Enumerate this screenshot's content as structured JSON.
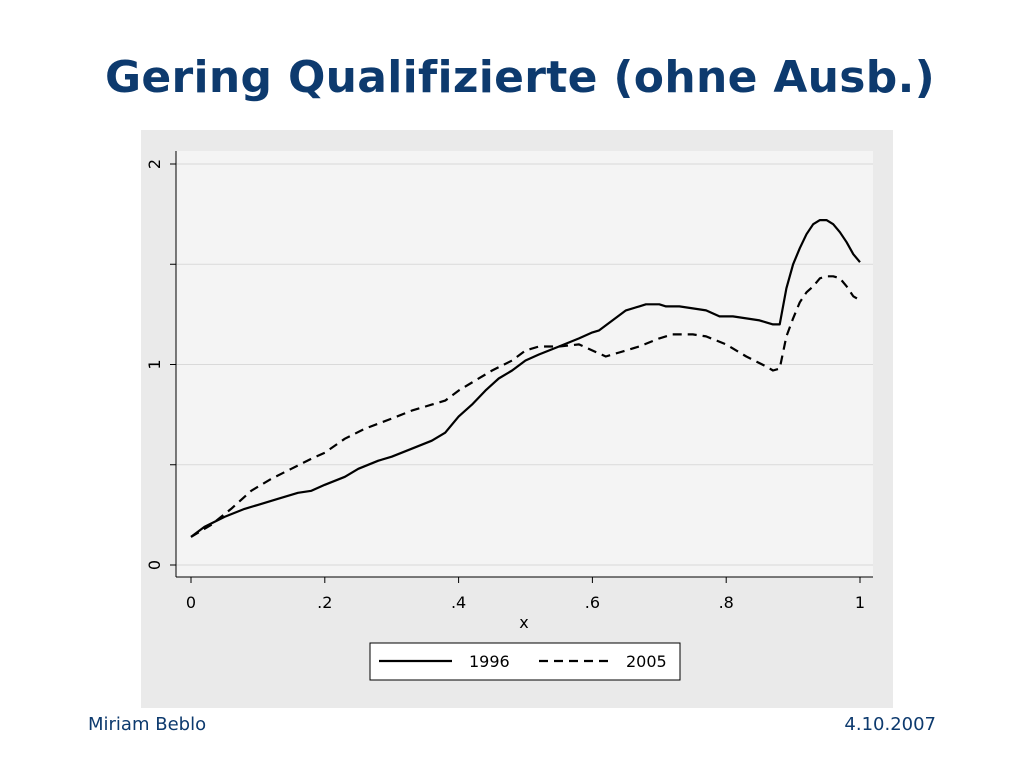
{
  "slide": {
    "title": "Gering Qualifizierte (ohne Ausb.)",
    "footer_left": "Miriam Beblo",
    "footer_right": "4.10.2007"
  },
  "colors": {
    "title": "#0d3a6e",
    "chart_outer_bg": "#eaeaea",
    "plot_bg": "#f4f4f4",
    "grid": "#d9d9d9",
    "line": "#000000"
  },
  "chart_data": {
    "type": "line",
    "xlabel": "x",
    "ylabel": "",
    "xlim": [
      0,
      1
    ],
    "ylim": [
      0,
      2
    ],
    "xticks": [
      0,
      0.2,
      0.4,
      0.6,
      0.8,
      1
    ],
    "xtick_labels": [
      "0",
      ".2",
      ".4",
      ".6",
      ".8",
      "1"
    ],
    "yticks": [
      0,
      0.5,
      1,
      1.5,
      2
    ],
    "ytick_labels": [
      "0",
      "",
      "1",
      "",
      "2"
    ],
    "grid": true,
    "legend_position": "bottom",
    "series": [
      {
        "name": "1996",
        "style": "solid",
        "x": [
          0,
          0.02,
          0.05,
          0.08,
          0.1,
          0.13,
          0.16,
          0.18,
          0.2,
          0.23,
          0.25,
          0.28,
          0.3,
          0.33,
          0.36,
          0.38,
          0.4,
          0.42,
          0.44,
          0.46,
          0.48,
          0.5,
          0.52,
          0.55,
          0.58,
          0.6,
          0.61,
          0.63,
          0.65,
          0.67,
          0.68,
          0.7,
          0.71,
          0.73,
          0.75,
          0.77,
          0.79,
          0.81,
          0.83,
          0.85,
          0.86,
          0.87,
          0.88,
          0.89,
          0.9,
          0.91,
          0.92,
          0.93,
          0.94,
          0.95,
          0.96,
          0.97,
          0.98,
          0.99,
          1.0
        ],
        "y": [
          0.14,
          0.19,
          0.24,
          0.28,
          0.3,
          0.33,
          0.36,
          0.37,
          0.4,
          0.44,
          0.48,
          0.52,
          0.54,
          0.58,
          0.62,
          0.66,
          0.74,
          0.8,
          0.87,
          0.93,
          0.97,
          1.02,
          1.05,
          1.09,
          1.13,
          1.16,
          1.17,
          1.22,
          1.27,
          1.29,
          1.3,
          1.3,
          1.29,
          1.29,
          1.28,
          1.27,
          1.24,
          1.24,
          1.23,
          1.22,
          1.21,
          1.2,
          1.2,
          1.38,
          1.5,
          1.58,
          1.65,
          1.7,
          1.72,
          1.72,
          1.7,
          1.66,
          1.61,
          1.55,
          1.51
        ]
      },
      {
        "name": "2005",
        "style": "dashed",
        "x": [
          0,
          0.03,
          0.06,
          0.09,
          0.12,
          0.15,
          0.18,
          0.2,
          0.23,
          0.26,
          0.3,
          0.33,
          0.36,
          0.37,
          0.38,
          0.4,
          0.42,
          0.45,
          0.48,
          0.5,
          0.52,
          0.55,
          0.58,
          0.6,
          0.62,
          0.64,
          0.67,
          0.7,
          0.72,
          0.75,
          0.77,
          0.8,
          0.83,
          0.86,
          0.87,
          0.88,
          0.89,
          0.9,
          0.91,
          0.92,
          0.93,
          0.94,
          0.95,
          0.96,
          0.97,
          0.98,
          0.99,
          1.0
        ],
        "y": [
          0.14,
          0.2,
          0.28,
          0.37,
          0.43,
          0.48,
          0.53,
          0.56,
          0.63,
          0.68,
          0.73,
          0.77,
          0.8,
          0.81,
          0.82,
          0.87,
          0.91,
          0.97,
          1.02,
          1.07,
          1.09,
          1.09,
          1.1,
          1.07,
          1.04,
          1.06,
          1.09,
          1.13,
          1.15,
          1.15,
          1.14,
          1.1,
          1.04,
          0.99,
          0.97,
          0.98,
          1.14,
          1.23,
          1.31,
          1.36,
          1.39,
          1.43,
          1.44,
          1.44,
          1.43,
          1.39,
          1.34,
          1.32
        ]
      }
    ]
  }
}
